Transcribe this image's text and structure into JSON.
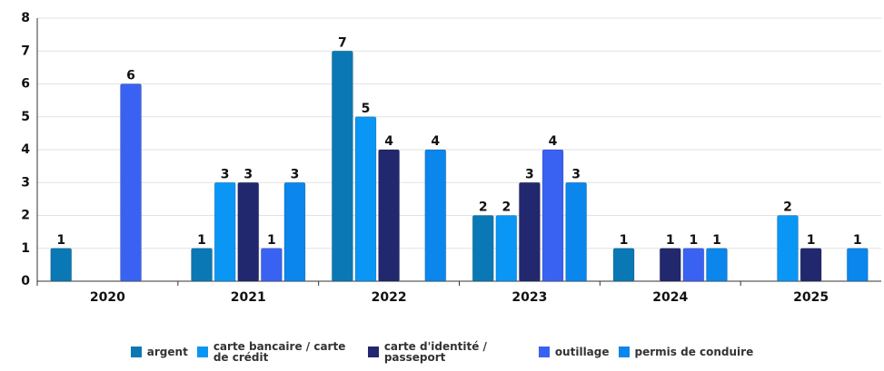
{
  "chart_data": {
    "type": "bar",
    "categories": [
      "2020",
      "2021",
      "2022",
      "2023",
      "2024",
      "2025"
    ],
    "series": [
      {
        "name": "argent",
        "color": "#0a78b4",
        "values": [
          1,
          1,
          7,
          2,
          1,
          null
        ]
      },
      {
        "name": "carte bancaire / carte de crédit",
        "color": "#0a96f5",
        "values": [
          null,
          3,
          5,
          2,
          null,
          2
        ]
      },
      {
        "name": "carte d'identité / passeport",
        "color": "#22286e",
        "values": [
          null,
          3,
          4,
          3,
          1,
          1
        ]
      },
      {
        "name": "outillage",
        "color": "#3a62f2",
        "values": [
          6,
          1,
          null,
          4,
          1,
          null
        ]
      },
      {
        "name": "permis de conduire",
        "color": "#0a86ec",
        "values": [
          null,
          3,
          4,
          3,
          1,
          1
        ]
      }
    ],
    "ylim": [
      0,
      8
    ],
    "yticks": [
      0,
      1,
      2,
      3,
      4,
      5,
      6,
      7,
      8
    ],
    "grid": true,
    "legend": "bottom"
  }
}
